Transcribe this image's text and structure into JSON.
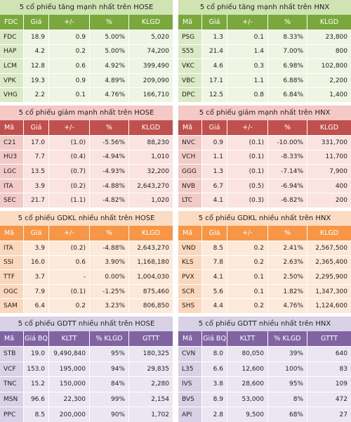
{
  "colors": {
    "green_header": "#7aa83c",
    "red_header": "#c0504d",
    "orange_header": "#f79646",
    "purple_header": "#8064a2"
  },
  "panels": [
    {
      "key": "hose_gainers",
      "theme": "green",
      "title": "5 cổ phiếu tăng mạnh nhất trên HOSE",
      "headers": [
        "FDC",
        "Giá",
        "+/-",
        "%",
        "KLGD"
      ],
      "rows": [
        [
          "FDC",
          "18.9",
          "0.9",
          "5.00%",
          "5,020"
        ],
        [
          "HAP",
          "4.2",
          "0.2",
          "5.00%",
          "74,200"
        ],
        [
          "LCM",
          "12.8",
          "0.6",
          "4.92%",
          "399,490"
        ],
        [
          "VPK",
          "19.3",
          "0.9",
          "4.89%",
          "209,090"
        ],
        [
          "VHG",
          "2.2",
          "0.1",
          "4.76%",
          "166,710"
        ]
      ]
    },
    {
      "key": "hnx_gainers",
      "theme": "green",
      "title": "5 cổ phiếu tăng mạnh nhất trên HNX",
      "headers": [
        "Mã",
        "Giá",
        "+/-",
        "%",
        "KLGD"
      ],
      "rows": [
        [
          "PSG",
          "1.3",
          "0.1",
          "8.33%",
          "23,800"
        ],
        [
          "S55",
          "21.4",
          "1.4",
          "7.00%",
          "800"
        ],
        [
          "VKC",
          "4.6",
          "0.3",
          "6.98%",
          "102,800"
        ],
        [
          "VBC",
          "17.1",
          "1.1",
          "6.88%",
          "2,200"
        ],
        [
          "DPC",
          "12.5",
          "0.8",
          "6.84%",
          "1,400"
        ]
      ]
    },
    {
      "key": "hose_losers",
      "theme": "red",
      "title": "5 cổ phiếu giảm mạnh nhất trên HOSE",
      "headers": [
        "Mã",
        "Giá",
        "+/-",
        "%",
        "KLGD"
      ],
      "rows": [
        [
          "C21",
          "17.0",
          "(1.0)",
          "-5.56%",
          "88,230"
        ],
        [
          "HU3",
          "7.7",
          "(0.4)",
          "-4.94%",
          "1,010"
        ],
        [
          "LGC",
          "13.5",
          "(0.7)",
          "-4.93%",
          "32,200"
        ],
        [
          "ITA",
          "3.9",
          "(0.2)",
          "-4.88%",
          "2,643,270"
        ],
        [
          "SEC",
          "21.7",
          "(1.1)",
          "-4.82%",
          "1,020"
        ]
      ]
    },
    {
      "key": "hnx_losers",
      "theme": "red",
      "title": "5 cổ phiếu giảm mạnh nhất trên HNX",
      "headers": [
        "Mã",
        "Giá",
        "+/-",
        "%",
        "KLGD"
      ],
      "rows": [
        [
          "NVC",
          "0.9",
          "(0.1)",
          "-10.00%",
          "331,700"
        ],
        [
          "VCH",
          "1.1",
          "(0.1)",
          "-8.33%",
          "11,700"
        ],
        [
          "GGG",
          "1.3",
          "(0.1)",
          "-7.14%",
          "7,900"
        ],
        [
          "NVB",
          "6.7",
          "(0.5)",
          "-6.94%",
          "400"
        ],
        [
          "LTC",
          "4.1",
          "(0.3)",
          "-6.82%",
          "200"
        ]
      ]
    },
    {
      "key": "hose_volume",
      "theme": "orange",
      "title": "5 cổ phiếu GDKL nhiều nhất trên HOSE",
      "headers": [
        "Mã",
        "Giá",
        "+/-",
        "%",
        "KLGD"
      ],
      "rows": [
        [
          "ITA",
          "3.9",
          "(0.2)",
          "-4.88%",
          "2,643,270"
        ],
        [
          "SSI",
          "16.0",
          "0.6",
          "3.90%",
          "1,168,180"
        ],
        [
          "TTF",
          "3.7",
          "-",
          "0.00%",
          "1,004,030"
        ],
        [
          "OGC",
          "7.9",
          "(0.1)",
          "-1.25%",
          "875,460"
        ],
        [
          "SAM",
          "6.4",
          "0.2",
          "3.23%",
          "806,850"
        ]
      ]
    },
    {
      "key": "hnx_volume",
      "theme": "orange",
      "title": "5 cổ phiếu GDKL nhiều nhất trên HNX",
      "headers": [
        "Mã",
        "Giá",
        "+/-",
        "%",
        "KLGD"
      ],
      "rows": [
        [
          "VND",
          "8.5",
          "0.2",
          "2.41%",
          "2,567,500"
        ],
        [
          "KLS",
          "7.8",
          "0.2",
          "2.63%",
          "2,365,400"
        ],
        [
          "PVX",
          "4.1",
          "0.1",
          "2.50%",
          "2,295,900"
        ],
        [
          "SCR",
          "5.6",
          "0.1",
          "1.82%",
          "1,347,300"
        ],
        [
          "SHS",
          "4.4",
          "0.2",
          "4.76%",
          "1,124,600"
        ]
      ]
    },
    {
      "key": "hose_value",
      "theme": "purple",
      "title": "5 cổ phiếu GDTT nhiều nhất trên HOSE",
      "headers": [
        "Mã",
        "Giá BQ",
        "KLTT",
        "% KLGD",
        "GTTT"
      ],
      "rows": [
        [
          "STB",
          "19.0",
          "9,490,840",
          "95%",
          "180,325"
        ],
        [
          "VCF",
          "153.0",
          "195,000",
          "94%",
          "29,835"
        ],
        [
          "TNC",
          "15.2",
          "150,000",
          "84%",
          "2,280"
        ],
        [
          "MSN",
          "96.6",
          "22,300",
          "99%",
          "2,154"
        ],
        [
          "PPC",
          "8.5",
          "200,000",
          "90%",
          "1,702"
        ]
      ]
    },
    {
      "key": "hnx_value",
      "theme": "purple",
      "title": "5 cổ phiếu GDTT nhiều nhất trên HNX",
      "headers": [
        "Mã",
        "Giá BQ",
        "KLTT",
        "% KLGD",
        "GTTT"
      ],
      "rows": [
        [
          "CVN",
          "8.0",
          "80,050",
          "39%",
          "640"
        ],
        [
          "L35",
          "6.6",
          "12,600",
          "100%",
          "83"
        ],
        [
          "IVS",
          "3.8",
          "28,600",
          "95%",
          "109"
        ],
        [
          "BVS",
          "8.9",
          "53,000",
          "8%",
          "472"
        ],
        [
          "API",
          "2.8",
          "9,500",
          "68%",
          "27"
        ]
      ]
    }
  ]
}
